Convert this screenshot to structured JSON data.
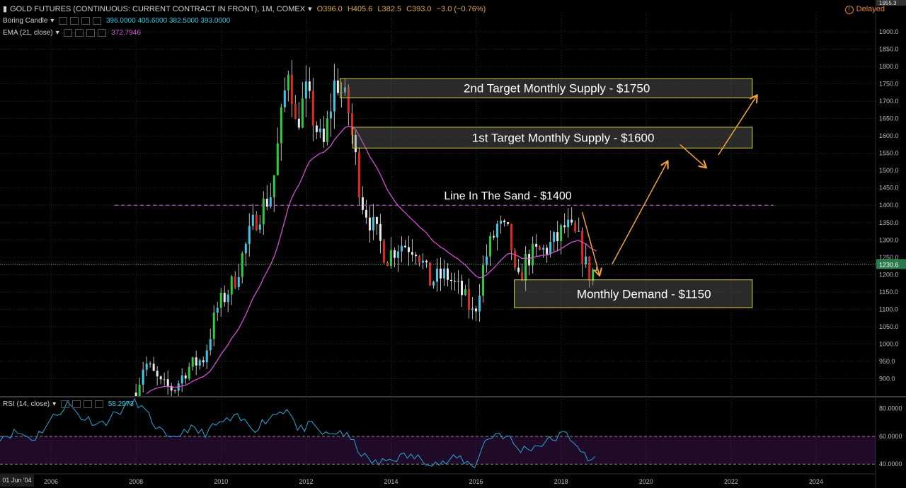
{
  "header": {
    "symbol_title": "GOLD FUTURES (CONTINUOUS: CURRENT CONTRACT IN FRONT), 1M, COMEX",
    "open": "O396.0",
    "high": "H405.6",
    "low": "L382.5",
    "close": "C393.0",
    "change": "−3.0 (−0.76%)",
    "delayed": "Delayed"
  },
  "studies": {
    "candle_name": "Boring Candle",
    "candle_values": "396.0000   405.6000   382.5000   393.0000",
    "ema_name": "EMA (21, close)",
    "ema_value": "372.7946",
    "rsi_name": "RSI (14, close)",
    "rsi_value": "58.2973"
  },
  "colors": {
    "up": "#2ecc40",
    "down": "#e0281e",
    "boring_up": "#3ec8e8",
    "boring_down": "#e8e8e8",
    "ema": "#d34fd1",
    "rsi": "#2aa6d8",
    "zone_border": "#d8d23c",
    "arrow": "#f0a43a",
    "line_in_sand": "#b64fc4"
  },
  "start_date_label": "01 Jun '04",
  "current_price_label": "1230.6",
  "top_price_label": "1955.3",
  "chart_data": [
    {
      "type": "candlestick",
      "title": "",
      "x_ticks": [
        "2006",
        "2008",
        "2010",
        "2012",
        "2014",
        "2016",
        "2018",
        "2020",
        "2022",
        "2024"
      ],
      "x_range": [
        2004.8,
        2025.4
      ],
      "y_ticks": [
        900,
        950,
        1000,
        1050,
        1100,
        1150,
        1200,
        1250,
        1300,
        1350,
        1400,
        1450,
        1500,
        1550,
        1600,
        1650,
        1700,
        1750,
        1800,
        1850,
        1900
      ],
      "y_tick_labels": [
        "900.0",
        "950.0",
        "1000.0",
        "1050.0",
        "1100.0",
        "1150.0",
        "1200.0",
        "1250.0",
        "1300.0",
        "1350.0",
        "1400.0",
        "1450.0",
        "1500.0",
        "1550.0",
        "1600.0",
        "1650.0",
        "1700.0",
        "1750.0",
        "1800.0",
        "1850.0",
        "1900.0"
      ],
      "y_range": [
        850,
        1955
      ],
      "close_anchors": [
        [
          2008.0,
          860
        ],
        [
          2008.2,
          950
        ],
        [
          2008.6,
          880
        ],
        [
          2008.9,
          870
        ],
        [
          2009.2,
          930
        ],
        [
          2009.6,
          960
        ],
        [
          2009.9,
          1100
        ],
        [
          2010.3,
          1180
        ],
        [
          2010.8,
          1360
        ],
        [
          2011.2,
          1440
        ],
        [
          2011.6,
          1820
        ],
        [
          2011.75,
          1630
        ],
        [
          2012.0,
          1720
        ],
        [
          2012.4,
          1560
        ],
        [
          2012.7,
          1770
        ],
        [
          2013.0,
          1670
        ],
        [
          2013.3,
          1420
        ],
        [
          2013.6,
          1330
        ],
        [
          2013.9,
          1250
        ],
        [
          2014.2,
          1290
        ],
        [
          2014.6,
          1280
        ],
        [
          2014.9,
          1180
        ],
        [
          2015.3,
          1200
        ],
        [
          2015.7,
          1140
        ],
        [
          2015.95,
          1080
        ],
        [
          2016.2,
          1240
        ],
        [
          2016.5,
          1340
        ],
        [
          2016.8,
          1310
        ],
        [
          2016.95,
          1160
        ],
        [
          2017.2,
          1250
        ],
        [
          2017.6,
          1270
        ],
        [
          2017.9,
          1300
        ],
        [
          2018.1,
          1340
        ],
        [
          2018.4,
          1300
        ],
        [
          2018.65,
          1200
        ],
        [
          2018.8,
          1215
        ]
      ],
      "ema_period": 21,
      "zones": [
        {
          "label": "2nd Target Monthly Supply - $1750",
          "low": 1710,
          "high": 1765,
          "x_from": 2012.8,
          "x_to": 2022.5
        },
        {
          "label": "1st Target Monthly Supply - $1600",
          "low": 1565,
          "high": 1625,
          "x_from": 2013.1,
          "x_to": 2022.5
        },
        {
          "label": "Monthly Demand - $1150",
          "low": 1105,
          "high": 1185,
          "x_from": 2016.9,
          "x_to": 2022.5
        }
      ],
      "line_in_sand": {
        "label": "Line In The Sand - $1400",
        "value": 1400,
        "x_from": 2007.5,
        "x_to": 2023.0
      },
      "current_price": 1230.6,
      "arrows": [
        {
          "from": [
            2018.5,
            1380
          ],
          "to": [
            2018.9,
            1200
          ]
        },
        {
          "from": [
            2019.2,
            1230
          ],
          "to": [
            2020.5,
            1525
          ]
        },
        {
          "from": [
            2020.8,
            1575
          ],
          "to": [
            2021.4,
            1510
          ]
        },
        {
          "from": [
            2021.7,
            1545
          ],
          "to": [
            2022.6,
            1715
          ]
        }
      ]
    },
    {
      "type": "line",
      "title": "RSI (14, close)",
      "y_ticks": [
        40,
        60,
        80
      ],
      "y_tick_labels": [
        "40.0000",
        "60.0000",
        "80.0000"
      ],
      "y_range": [
        34,
        88
      ],
      "band": [
        40,
        60
      ],
      "anchors": [
        [
          2004.8,
          60
        ],
        [
          2005.2,
          63
        ],
        [
          2005.6,
          58
        ],
        [
          2006.0,
          72
        ],
        [
          2006.4,
          84
        ],
        [
          2006.7,
          74
        ],
        [
          2007.2,
          69
        ],
        [
          2007.6,
          78
        ],
        [
          2008.0,
          86
        ],
        [
          2008.4,
          70
        ],
        [
          2008.8,
          56
        ],
        [
          2009.2,
          66
        ],
        [
          2009.6,
          62
        ],
        [
          2010.0,
          70
        ],
        [
          2010.4,
          73
        ],
        [
          2010.8,
          66
        ],
        [
          2011.2,
          75
        ],
        [
          2011.6,
          81
        ],
        [
          2011.8,
          64
        ],
        [
          2012.1,
          68
        ],
        [
          2012.5,
          60
        ],
        [
          2012.8,
          64
        ],
        [
          2013.1,
          56
        ],
        [
          2013.4,
          44
        ],
        [
          2013.7,
          40
        ],
        [
          2014.0,
          44
        ],
        [
          2014.4,
          46
        ],
        [
          2014.8,
          43
        ],
        [
          2015.2,
          40
        ],
        [
          2015.6,
          45
        ],
        [
          2015.95,
          38
        ],
        [
          2016.2,
          56
        ],
        [
          2016.5,
          63
        ],
        [
          2016.8,
          58
        ],
        [
          2017.0,
          50
        ],
        [
          2017.4,
          53
        ],
        [
          2017.8,
          58
        ],
        [
          2018.1,
          62
        ],
        [
          2018.4,
          54
        ],
        [
          2018.65,
          40
        ],
        [
          2018.8,
          46
        ]
      ]
    }
  ]
}
